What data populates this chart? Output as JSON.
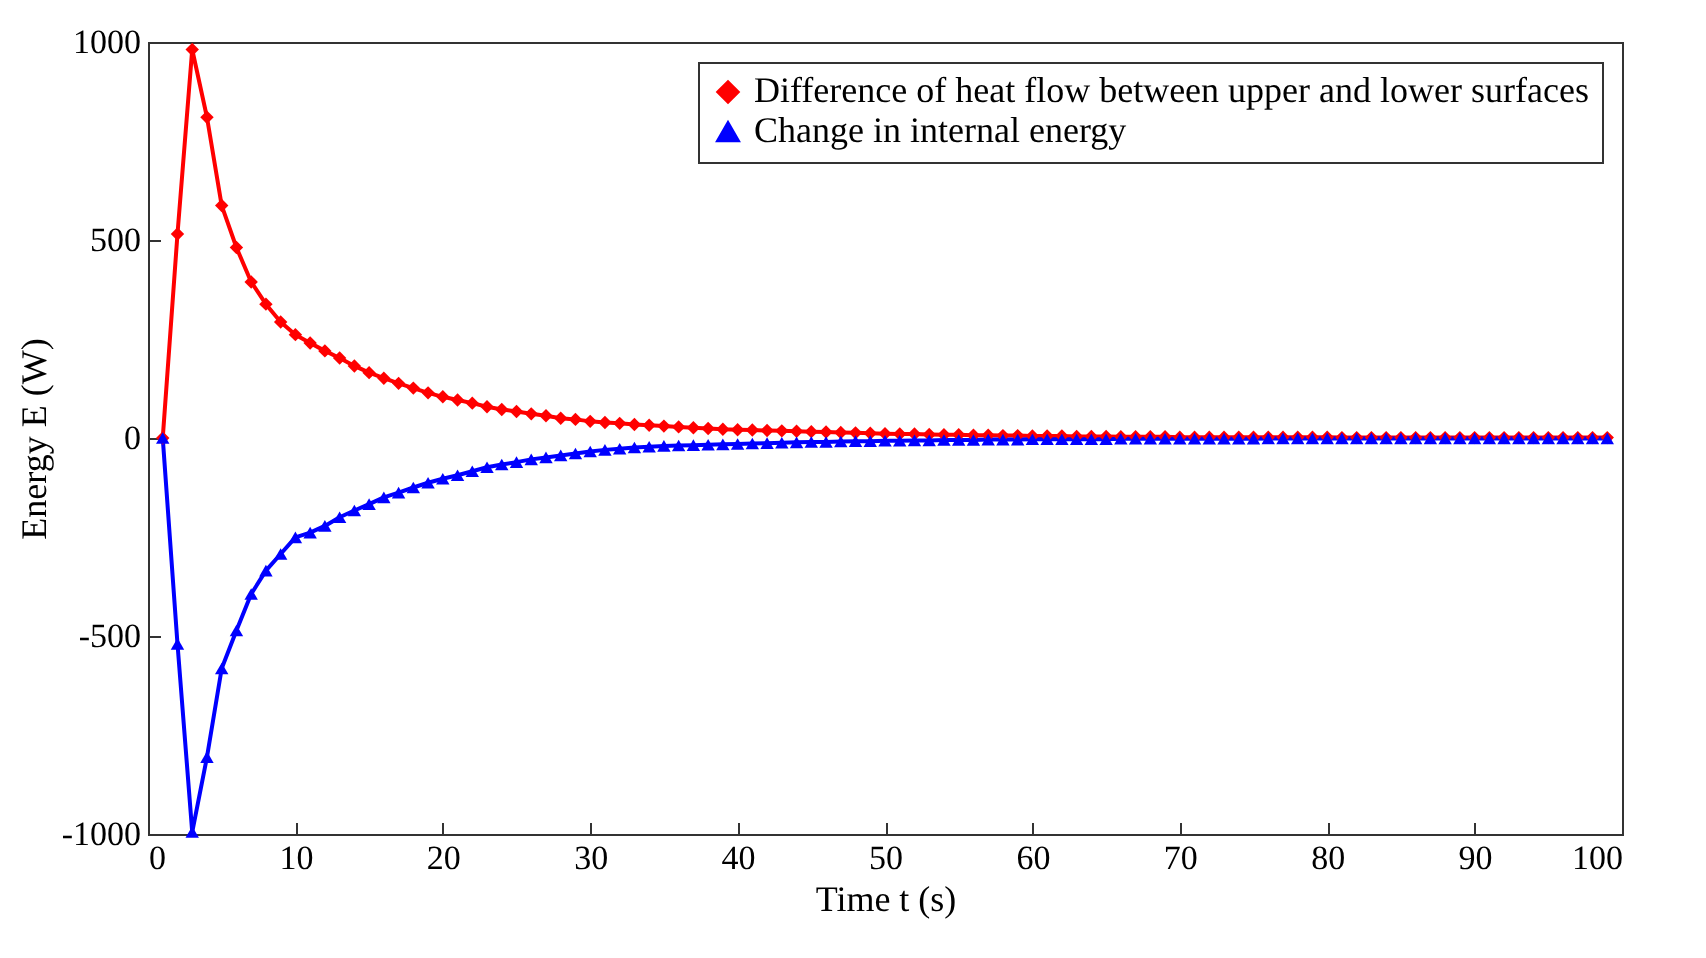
{
  "chart_data": {
    "type": "line",
    "xlabel": "Time t (s)",
    "ylabel": "Energy E (W)",
    "x": [
      1,
      2,
      3,
      4,
      5,
      6,
      7,
      8,
      9,
      10,
      11,
      12,
      13,
      14,
      15,
      16,
      17,
      18,
      19,
      20,
      21,
      22,
      23,
      24,
      25,
      26,
      27,
      28,
      29,
      30,
      31,
      32,
      33,
      34,
      35,
      36,
      37,
      38,
      39,
      40,
      41,
      42,
      43,
      44,
      45,
      46,
      47,
      48,
      49,
      50,
      51,
      52,
      53,
      54,
      55,
      56,
      57,
      58,
      59,
      60,
      61,
      62,
      63,
      64,
      65,
      66,
      67,
      68,
      69,
      70,
      71,
      72,
      73,
      74,
      75,
      76,
      77,
      78,
      79,
      80,
      81,
      82,
      83,
      84,
      85,
      86,
      87,
      88,
      89,
      90,
      91,
      92,
      93,
      94,
      95,
      96,
      97,
      98,
      99
    ],
    "series": [
      {
        "name": "Difference of heat flow between upper and lower surfaces",
        "color": "#ff0000",
        "marker": "diamond",
        "values": [
          0,
          515,
          981,
          810,
          587,
          481,
          394,
          338,
          293,
          261,
          240,
          220,
          202,
          182,
          165,
          151,
          138,
          126,
          114,
          104,
          96,
          88,
          79,
          72,
          67,
          61,
          56,
          50,
          47,
          42,
          39,
          37,
          34,
          32,
          30,
          28,
          26,
          24,
          22,
          21,
          20,
          19,
          18,
          17,
          16,
          15,
          14,
          13,
          12,
          11,
          10,
          10,
          9,
          8,
          8,
          7,
          7,
          6,
          6,
          5,
          5,
          5,
          4,
          4,
          4,
          3,
          3,
          3,
          3,
          2,
          2,
          2,
          2,
          2,
          2,
          2,
          2,
          2,
          2,
          2,
          1,
          1,
          1,
          1,
          1,
          1,
          1,
          1,
          1,
          1,
          1,
          1,
          1,
          1,
          1,
          1,
          1,
          1,
          1
        ]
      },
      {
        "name": "Change in internal energy",
        "color": "#0000ff",
        "marker": "triangle",
        "values": [
          0,
          -520,
          -995,
          -806,
          -582,
          -486,
          -394,
          -335,
          -293,
          -251,
          -239,
          -222,
          -200,
          -183,
          -167,
          -150,
          -138,
          -125,
          -113,
          -103,
          -94,
          -84,
          -74,
          -67,
          -61,
          -54,
          -49,
          -44,
          -39,
          -34,
          -30,
          -27,
          -24,
          -22,
          -20,
          -19,
          -18,
          -17,
          -16,
          -15,
          -14,
          -13,
          -12,
          -11,
          -10,
          -10,
          -9,
          -8,
          -8,
          -7,
          -7,
          -6,
          -6,
          -5,
          -5,
          -5,
          -4,
          -4,
          -4,
          -3,
          -3,
          -3,
          -3,
          -3,
          -3,
          -2,
          -2,
          -2,
          -2,
          -2,
          -2,
          -2,
          -2,
          -2,
          -2,
          -1,
          -1,
          -1,
          -1,
          -1,
          -1,
          -1,
          -1,
          -1,
          -1,
          -1,
          -1,
          -1,
          -1,
          -1,
          -1,
          -1,
          -1,
          -1,
          -1,
          -1,
          -1,
          -1,
          -1
        ]
      }
    ],
    "xlim": [
      0,
      100
    ],
    "xticks": [
      0,
      10,
      20,
      30,
      40,
      50,
      60,
      70,
      80,
      90,
      100
    ],
    "ylim": [
      -1000,
      1000
    ],
    "yticks": [
      -1000,
      -500,
      0,
      500,
      1000
    ],
    "legend": "top right",
    "grid": false,
    "line_style": "solid"
  }
}
